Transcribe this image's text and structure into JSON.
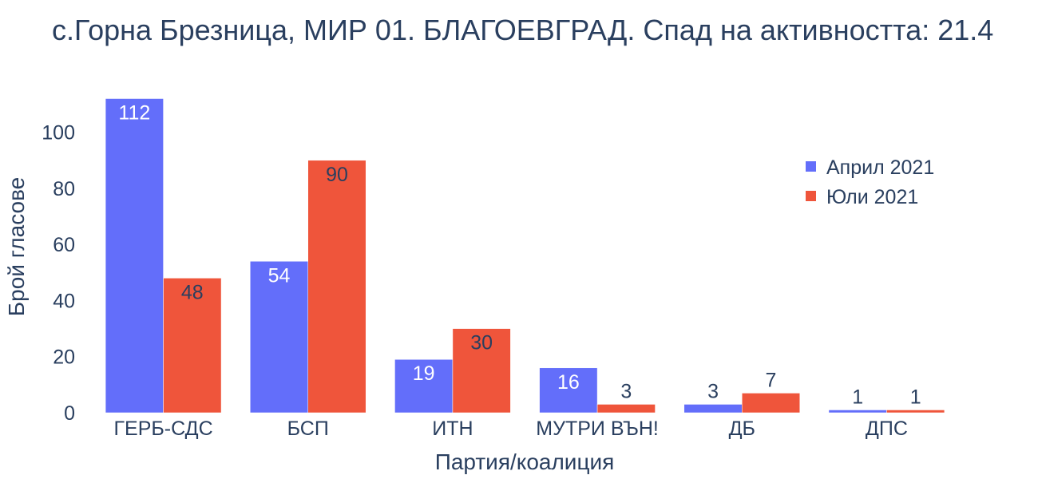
{
  "chart_data": {
    "type": "bar",
    "title": "с.Горна Брезница, МИР 01. БЛАГОЕВГРАД. Спад на активността: 21.4",
    "xlabel": "Партия/коалиция",
    "ylabel": "Брой гласове",
    "categories": [
      "ГЕРБ-СДС",
      "БСП",
      "ИТН",
      "МУТРИ ВЪН!",
      "ДБ",
      "ДПС"
    ],
    "series": [
      {
        "name": "Април 2021",
        "color": "#636efa",
        "values": [
          112,
          54,
          19,
          16,
          3,
          1
        ]
      },
      {
        "name": "Юли 2021",
        "color": "#ef553b",
        "values": [
          48,
          90,
          30,
          3,
          7,
          1
        ]
      }
    ],
    "ylim": [
      0,
      113
    ],
    "yticks": [
      0,
      20,
      40,
      60,
      80,
      100
    ],
    "grid": false,
    "legend_position": "top-right"
  }
}
